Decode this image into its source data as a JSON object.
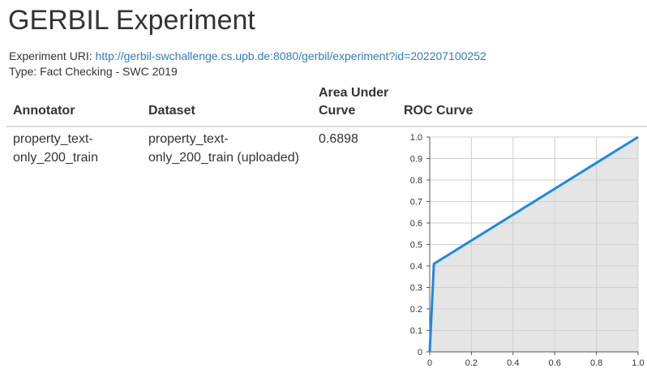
{
  "page_title": "GERBIL Experiment",
  "experiment": {
    "uri_label": "Experiment URI:",
    "uri": "http://gerbil-swchallenge.cs.upb.de:8080/gerbil/experiment?id=202207100252",
    "type_text": "Type: Fact Checking - SWC 2019"
  },
  "table": {
    "headers": {
      "annotator": "Annotator",
      "dataset": "Dataset",
      "auc_line1": "Area Under",
      "auc_line2": "Curve",
      "roc": "ROC Curve"
    },
    "row": {
      "annotator_line1": "property_text-",
      "annotator_line2": "only_200_train",
      "dataset_line1": "property_text-",
      "dataset_line2": "only_200_train (uploaded)",
      "auc": "0.6898"
    }
  },
  "chart_data": {
    "type": "area",
    "x": [
      0,
      0.02,
      1
    ],
    "y": [
      0,
      0.41,
      1
    ],
    "xlim": [
      0,
      1
    ],
    "ylim": [
      0,
      1
    ],
    "xticks": [
      "0",
      "0.2",
      "0.4",
      "0.6",
      "0.8",
      "1.0"
    ],
    "yticks": [
      "0",
      "0.1",
      "0.2",
      "0.3",
      "0.4",
      "0.5",
      "0.6",
      "0.7",
      "0.8",
      "0.9",
      "1.0"
    ],
    "grid": true,
    "line_color": "#1e88e5",
    "fill_color": "#e5e5e5",
    "grid_color": "#d0d0d0"
  }
}
